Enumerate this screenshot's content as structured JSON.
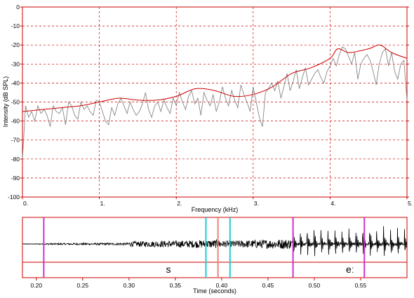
{
  "chart_data": [
    {
      "type": "line",
      "panel": "spectrum",
      "xlabel": "Frequency (kHz)",
      "ylabel": "Intensity (dB SPL)",
      "xlim": [
        0,
        5
      ],
      "ylim": [
        -100,
        0
      ],
      "x_ticks": [
        0,
        1,
        2,
        3,
        4,
        5
      ],
      "x_tick_labels": [
        "0.",
        "1.",
        "2.",
        "3.",
        "4.",
        "5."
      ],
      "y_ticks": [
        0,
        -10,
        -20,
        -30,
        -40,
        -50,
        -60,
        -70,
        -80,
        -90,
        -100
      ],
      "y_tick_labels": [
        "0",
        "-10",
        "-20",
        "-30",
        "-40",
        "-50",
        "-60",
        "-70",
        "-80",
        "-90",
        "-100"
      ],
      "grid": true,
      "series": [
        {
          "style": "raw spectrum",
          "color": "#888888",
          "x": [
            0.0,
            0.04,
            0.08,
            0.12,
            0.16,
            0.2,
            0.24,
            0.28,
            0.32,
            0.36,
            0.4,
            0.44,
            0.48,
            0.52,
            0.56,
            0.6,
            0.64,
            0.68,
            0.72,
            0.76,
            0.8,
            0.84,
            0.88,
            0.92,
            0.96,
            1.0,
            1.04,
            1.08,
            1.12,
            1.16,
            1.2,
            1.24,
            1.28,
            1.32,
            1.36,
            1.4,
            1.44,
            1.48,
            1.52,
            1.56,
            1.6,
            1.64,
            1.68,
            1.72,
            1.76,
            1.8,
            1.84,
            1.88,
            1.92,
            1.96,
            2.0,
            2.04,
            2.08,
            2.12,
            2.16,
            2.2,
            2.24,
            2.28,
            2.32,
            2.36,
            2.4,
            2.44,
            2.48,
            2.52,
            2.56,
            2.6,
            2.64,
            2.68,
            2.72,
            2.76,
            2.8,
            2.84,
            2.88,
            2.92,
            2.96,
            3.0,
            3.04,
            3.08,
            3.12,
            3.16,
            3.2,
            3.24,
            3.28,
            3.32,
            3.36,
            3.4,
            3.44,
            3.48,
            3.52,
            3.56,
            3.6,
            3.64,
            3.68,
            3.72,
            3.76,
            3.8,
            3.84,
            3.88,
            3.92,
            3.96,
            4.0,
            4.04,
            4.08,
            4.12,
            4.16,
            4.2,
            4.24,
            4.28,
            4.32,
            4.36,
            4.4,
            4.44,
            4.48,
            4.52,
            4.56,
            4.6,
            4.64,
            4.68,
            4.72,
            4.76,
            4.8,
            4.84,
            4.88,
            4.92,
            4.96,
            5.0
          ],
          "y": [
            -80,
            -52,
            -58,
            -55,
            -60,
            -52,
            -56,
            -54,
            -57,
            -63,
            -52,
            -55,
            -56,
            -53,
            -62,
            -50,
            -52,
            -57,
            -59,
            -50,
            -54,
            -52,
            -55,
            -57,
            -49,
            -50,
            -55,
            -60,
            -62,
            -53,
            -57,
            -51,
            -48,
            -52,
            -56,
            -50,
            -54,
            -57,
            -55,
            -51,
            -45,
            -54,
            -58,
            -52,
            -50,
            -55,
            -49,
            -53,
            -56,
            -48,
            -52,
            -45,
            -50,
            -54,
            -47,
            -44,
            -51,
            -48,
            -57,
            -45,
            -49,
            -52,
            -46,
            -55,
            -50,
            -42,
            -48,
            -52,
            -44,
            -49,
            -53,
            -41,
            -46,
            -50,
            -55,
            -42,
            -50,
            -58,
            -63,
            -45,
            -43,
            -40,
            -44,
            -39,
            -48,
            -42,
            -35,
            -44,
            -39,
            -33,
            -43,
            -37,
            -32,
            -41,
            -38,
            -35,
            -33,
            -37,
            -40,
            -34,
            -31,
            -27,
            -31,
            -25,
            -21,
            -22,
            -26,
            -30,
            -24,
            -38,
            -30,
            -27,
            -25,
            -28,
            -34,
            -41,
            -30,
            -24,
            -22,
            -31,
            -24,
            -34,
            -38,
            -30,
            -28,
            -49
          ],
          "name": ""
        },
        {
          "style": "smoothed envelope",
          "color": "#cc0000",
          "x": [
            0.0,
            0.25,
            0.5,
            0.75,
            1.0,
            1.25,
            1.5,
            1.75,
            2.0,
            2.25,
            2.5,
            2.75,
            3.0,
            3.25,
            3.5,
            3.75,
            4.0,
            4.1,
            4.25,
            4.5,
            4.65,
            4.8,
            5.0
          ],
          "y": [
            -55,
            -54,
            -53,
            -52,
            -50,
            -48,
            -49,
            -49,
            -47,
            -43,
            -44,
            -47,
            -46,
            -42,
            -35,
            -32,
            -27,
            -22,
            -24,
            -22,
            -20,
            -24,
            -27
          ],
          "name": ""
        }
      ]
    },
    {
      "type": "line",
      "panel": "waveform",
      "xlabel": "Time (seconds)",
      "xlim": [
        0.185,
        0.6
      ],
      "x_ticks": [
        0.2,
        0.25,
        0.3,
        0.35,
        0.4,
        0.45,
        0.5,
        0.55
      ],
      "x_tick_labels": [
        "0.20",
        "0.25",
        "0.30",
        "0.35",
        "0.40",
        "0.45",
        "0.50",
        "0.55"
      ],
      "envelope": {
        "description": "near-silence, then fricative noise rising to about 0.47 s, then periodic vowel pulses",
        "segments": [
          {
            "from": 0.185,
            "to": 0.21,
            "amplitude": 0.02
          },
          {
            "from": 0.21,
            "to": 0.3,
            "amplitude": 0.05
          },
          {
            "from": 0.3,
            "to": 0.4,
            "amplitude": 0.18
          },
          {
            "from": 0.4,
            "to": 0.477,
            "amplitude": 0.22
          },
          {
            "from": 0.477,
            "to": 0.6,
            "amplitude": 0.95,
            "periodic": true
          }
        ]
      },
      "markers": [
        {
          "time": 0.208,
          "color": "#cc33cc"
        },
        {
          "time": 0.383,
          "color": "#22cccc"
        },
        {
          "time": 0.396,
          "color": "#f08080"
        },
        {
          "time": 0.409,
          "color": "#22cccc"
        },
        {
          "time": 0.477,
          "color": "#cc33cc"
        },
        {
          "time": 0.554,
          "color": "#cc33cc"
        }
      ],
      "segments": [
        {
          "label": "s",
          "from": 0.208,
          "to": 0.477
        },
        {
          "label": "eː",
          "from": 0.477,
          "to": 0.6
        }
      ]
    }
  ]
}
